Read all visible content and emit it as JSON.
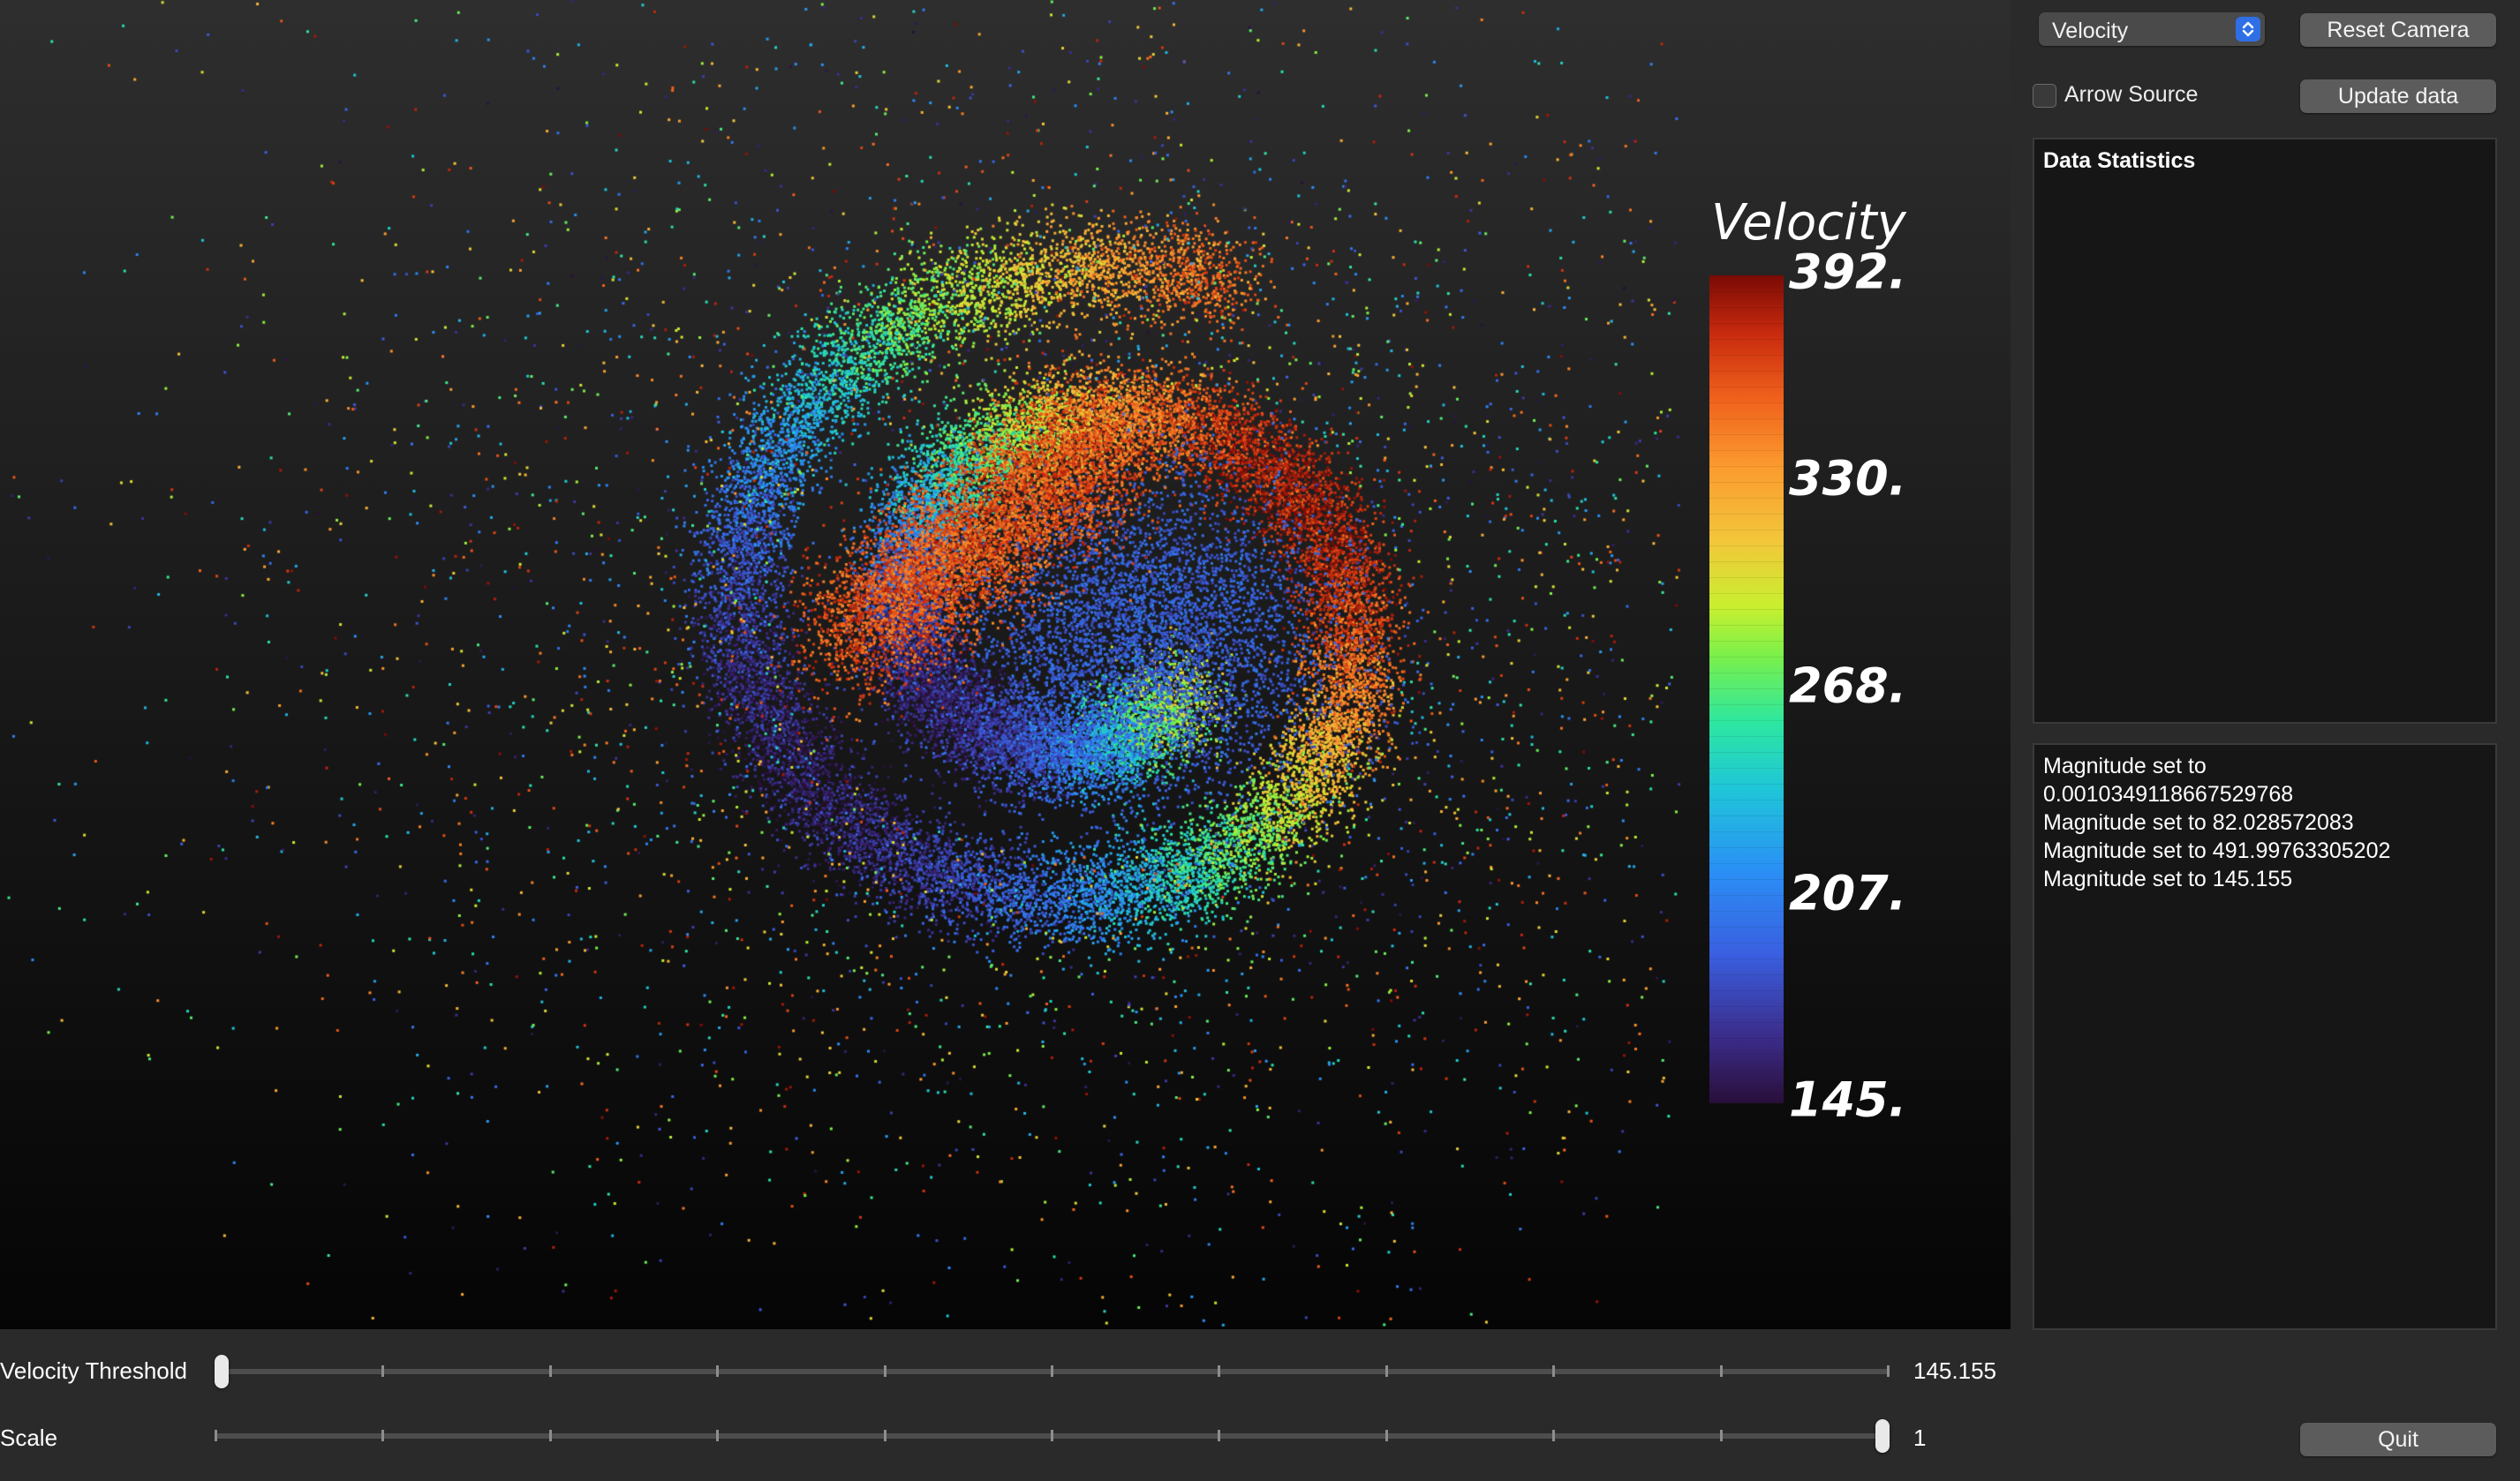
{
  "viewport": {
    "colorbar": {
      "title": "Velocity",
      "labels": [
        "392.",
        "330.",
        "268.",
        "207.",
        "145."
      ],
      "min": 145.155,
      "max": 392
    }
  },
  "controls": {
    "array_select": {
      "value": "Velocity"
    },
    "reset_camera_label": "Reset Camera",
    "arrow_source_label": "Arrow Source",
    "arrow_source_checked": false,
    "update_data_label": "Update data",
    "quit_label": "Quit"
  },
  "stats_panel": {
    "title": "Data Statistics"
  },
  "log_panel": {
    "lines": [
      "Magnitude set to",
      "0.0010349118667529768",
      "Magnitude set to 82.028572083",
      "Magnitude set to 491.99763305202",
      "Magnitude set to 145.155"
    ]
  },
  "sliders": {
    "threshold": {
      "label": "Velocity Threshold",
      "value_text": "145.155",
      "position": 0.0
    },
    "scale": {
      "label": "Scale",
      "value_text": "1",
      "position": 1.0
    }
  },
  "colors": {
    "background": "#2a2a2a",
    "select_accent": "#2f6fe6"
  }
}
